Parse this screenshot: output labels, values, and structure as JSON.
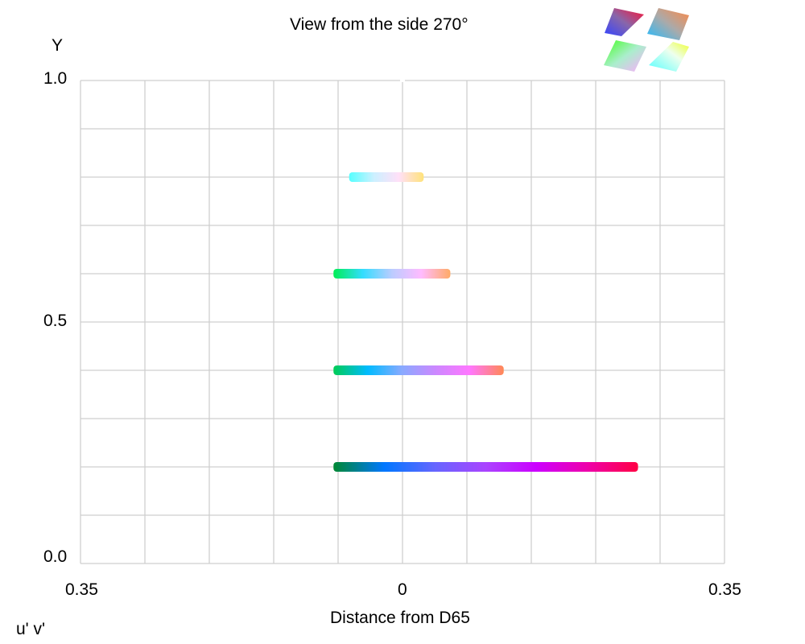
{
  "chart_data": {
    "type": "line",
    "title": "View from the side 270°",
    "xlabel": "Distance from D65",
    "ylabel": "Y",
    "corner_label": "u' v'",
    "xlim": [
      -0.35,
      0.35
    ],
    "ylim": [
      0,
      1
    ],
    "x_tick_labels": [
      "0.35",
      "0",
      "0.35"
    ],
    "y_tick_labels": [
      "1.0",
      "0.5",
      "0.0"
    ],
    "grid": true,
    "series": [
      {
        "name": "Y=0.8",
        "y": 0.8,
        "x": [
          -0.058,
          0.023
        ],
        "colors": [
          "#55ffff",
          "#ccf0ff",
          "#ffe0f8",
          "#ffe27a"
        ]
      },
      {
        "name": "Y=0.6",
        "y": 0.6,
        "x": [
          -0.075,
          0.052
        ],
        "colors": [
          "#00ee55",
          "#33ddff",
          "#bbccff",
          "#ffbbff",
          "#ffaa66"
        ]
      },
      {
        "name": "Y=0.4",
        "y": 0.4,
        "x": [
          -0.075,
          0.11
        ],
        "colors": [
          "#00cc55",
          "#00bbff",
          "#88aaff",
          "#cc88ff",
          "#ff77ff",
          "#ff8855"
        ]
      },
      {
        "name": "Y=0.2",
        "y": 0.2,
        "x": [
          -0.075,
          0.256
        ],
        "colors": [
          "#008833",
          "#0077ff",
          "#6666ff",
          "#aa44ff",
          "#cc00ff",
          "#ee00aa",
          "#ff0044"
        ]
      }
    ]
  }
}
